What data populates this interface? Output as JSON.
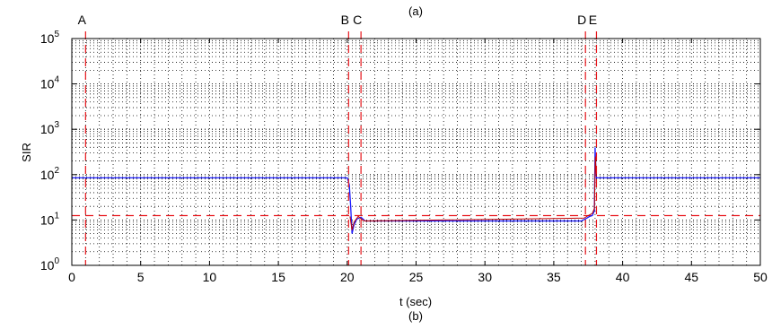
{
  "chart_data": {
    "type": "line",
    "title": "(a)",
    "caption": "(b)",
    "xlabel": "t (sec)",
    "ylabel": "SIR",
    "xlim": [
      0,
      50
    ],
    "ylim": [
      1,
      100000
    ],
    "yscale": "log",
    "grid": "dotted",
    "xticks": [
      0,
      5,
      10,
      15,
      20,
      25,
      30,
      35,
      40,
      45,
      50
    ],
    "yticks": [
      {
        "value": 1,
        "base": "10",
        "exp": "0"
      },
      {
        "value": 10,
        "base": "10",
        "exp": "1"
      },
      {
        "value": 100,
        "base": "10",
        "exp": "2"
      },
      {
        "value": 1000,
        "base": "10",
        "exp": "3"
      },
      {
        "value": 10000,
        "base": "10",
        "exp": "4"
      },
      {
        "value": 100000,
        "base": "10",
        "exp": "5"
      }
    ],
    "markers": [
      {
        "label": "A",
        "x": 1.0
      },
      {
        "label": "B",
        "x": 20.1
      },
      {
        "label": "C",
        "x": 21.0
      },
      {
        "label": "D",
        "x": 37.3
      },
      {
        "label": "E",
        "x": 38.1
      }
    ],
    "threshold": {
      "y": 12.5,
      "color": "#e8151b"
    },
    "series": [
      {
        "color": "#1a1aff",
        "points": [
          [
            0,
            85
          ],
          [
            20.0,
            85
          ],
          [
            20.15,
            60
          ],
          [
            20.25,
            20
          ],
          [
            20.35,
            5
          ],
          [
            20.5,
            8
          ],
          [
            20.7,
            10.5
          ],
          [
            21.0,
            11.5
          ],
          [
            21.3,
            9.5
          ],
          [
            37.0,
            9.5
          ],
          [
            37.4,
            11
          ],
          [
            37.6,
            12
          ],
          [
            37.8,
            12.5
          ],
          [
            37.95,
            16
          ],
          [
            38.0,
            400
          ],
          [
            38.05,
            150
          ],
          [
            38.1,
            85
          ],
          [
            50,
            85
          ]
        ]
      },
      {
        "color": "#c00000",
        "points": [
          [
            20.2,
            12
          ],
          [
            20.35,
            6
          ],
          [
            20.5,
            9
          ],
          [
            20.8,
            12
          ],
          [
            21.1,
            10
          ],
          [
            21.3,
            9.5
          ],
          [
            37.2,
            11
          ],
          [
            37.6,
            13
          ],
          [
            37.8,
            14
          ],
          [
            37.95,
            18
          ],
          [
            38.02,
            250
          ],
          [
            38.1,
            90
          ]
        ]
      }
    ]
  }
}
